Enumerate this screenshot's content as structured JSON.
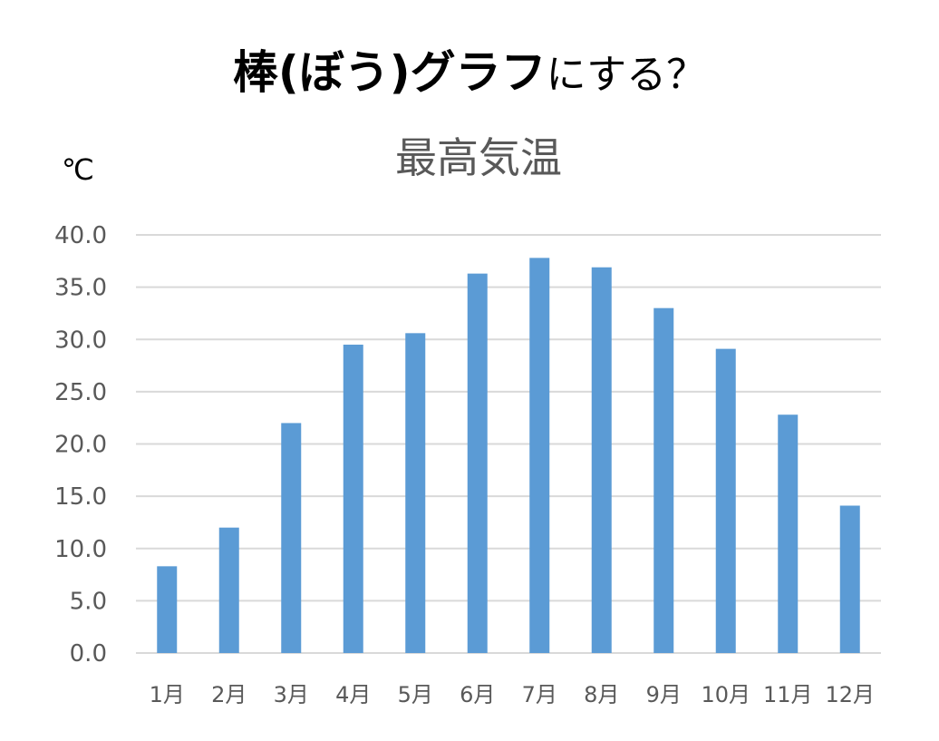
{
  "heading": {
    "bold": "棒(ぼう)グラフ",
    "normal": "にする？"
  },
  "chart_data": {
    "type": "bar",
    "title": "最高気温",
    "ylabel": "℃",
    "xlabel": "",
    "categories": [
      "1月",
      "2月",
      "3月",
      "4月",
      "5月",
      "6月",
      "7月",
      "8月",
      "9月",
      "10月",
      "11月",
      "12月"
    ],
    "values": [
      8.3,
      12.0,
      22.0,
      29.5,
      30.6,
      36.3,
      37.8,
      36.9,
      33.0,
      29.1,
      22.8,
      14.1
    ],
    "ylim": [
      0,
      40
    ],
    "yticks": [
      "0.0",
      "5.0",
      "10.0",
      "15.0",
      "20.0",
      "25.0",
      "30.0",
      "35.0",
      "40.0"
    ],
    "grid": true,
    "legend": "none",
    "bar_color": "#5B9BD5",
    "grid_color": "#D9D9D9"
  }
}
